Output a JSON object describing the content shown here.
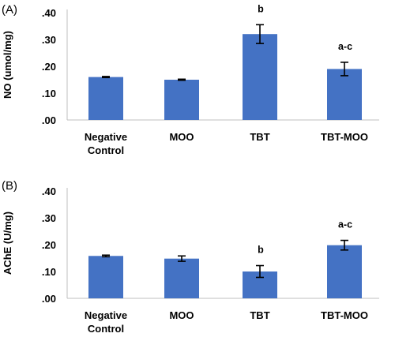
{
  "chart_data": [
    {
      "type": "bar",
      "panel_label": "(A)",
      "ylabel": "NO (umol/mg)",
      "categories": [
        "Negative Control",
        "MOO",
        "TBT",
        "TBT-MOO"
      ],
      "category_lines": [
        [
          "Negative",
          "Control"
        ],
        [
          "MOO"
        ],
        [
          "TBT"
        ],
        [
          "TBT-MOO"
        ]
      ],
      "values": [
        0.16,
        0.15,
        0.32,
        0.19
      ],
      "errors": [
        0.002,
        0.002,
        0.035,
        0.025
      ],
      "annotations": [
        "",
        "",
        "b",
        "a-c"
      ],
      "ylim": [
        0,
        0.4
      ],
      "yticks": [
        0,
        0.1,
        0.2,
        0.3,
        0.4
      ],
      "ytick_labels": [
        ".00",
        ".10",
        ".20",
        ".30",
        ".40"
      ],
      "grid": false,
      "bar_color": "#4472C4"
    },
    {
      "type": "bar",
      "panel_label": "(B)",
      "ylabel": "AChE (U/mg)",
      "categories": [
        "Negative Control",
        "MOO",
        "TBT",
        "TBT-MOO"
      ],
      "category_lines": [
        [
          "Negative",
          "Control"
        ],
        [
          "MOO"
        ],
        [
          "TBT"
        ],
        [
          "TBT-MOO"
        ]
      ],
      "values": [
        0.158,
        0.148,
        0.1,
        0.198
      ],
      "errors": [
        0.003,
        0.01,
        0.022,
        0.018
      ],
      "annotations": [
        "",
        "",
        "b",
        "a-c"
      ],
      "ylim": [
        0,
        0.4
      ],
      "yticks": [
        0,
        0.1,
        0.2,
        0.3,
        0.4
      ],
      "ytick_labels": [
        ".00",
        ".10",
        ".20",
        ".30",
        ".40"
      ],
      "grid": false,
      "bar_color": "#4472C4"
    }
  ]
}
